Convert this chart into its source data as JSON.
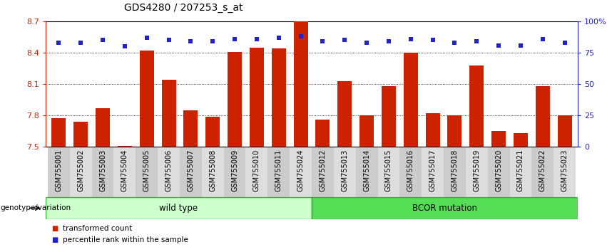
{
  "title": "GDS4280 / 207253_s_at",
  "categories": [
    "GSM755001",
    "GSM755002",
    "GSM755003",
    "GSM755004",
    "GSM755005",
    "GSM755006",
    "GSM755007",
    "GSM755008",
    "GSM755009",
    "GSM755010",
    "GSM755011",
    "GSM755024",
    "GSM755012",
    "GSM755013",
    "GSM755014",
    "GSM755015",
    "GSM755016",
    "GSM755017",
    "GSM755018",
    "GSM755019",
    "GSM755020",
    "GSM755021",
    "GSM755022",
    "GSM755023"
  ],
  "bar_values": [
    7.77,
    7.74,
    7.87,
    7.51,
    8.42,
    8.14,
    7.85,
    7.79,
    8.41,
    8.45,
    8.44,
    8.7,
    7.76,
    8.13,
    7.8,
    8.08,
    8.4,
    7.82,
    7.8,
    8.28,
    7.65,
    7.63,
    8.08,
    7.8
  ],
  "percentile_values": [
    83,
    83,
    85,
    80,
    87,
    85,
    84,
    84,
    86,
    86,
    87,
    88,
    84,
    85,
    83,
    84,
    86,
    85,
    83,
    84,
    81,
    81,
    86,
    83
  ],
  "bar_color": "#cc2200",
  "percentile_color": "#2222cc",
  "ylim_left": [
    7.5,
    8.7
  ],
  "ylim_right": [
    0,
    100
  ],
  "yticks_left": [
    7.5,
    7.8,
    8.1,
    8.4,
    8.7
  ],
  "yticks_right": [
    0,
    25,
    50,
    75,
    100
  ],
  "ytick_labels_right": [
    "0",
    "25",
    "50",
    "75",
    "100%"
  ],
  "group1_label": "wild type",
  "group2_label": "BCOR mutation",
  "group1_count": 12,
  "group2_count": 12,
  "group1_color": "#ccffcc",
  "group2_color": "#55dd55",
  "group_border_color": "#33aa33",
  "group_header": "genotype/variation",
  "legend1": "transformed count",
  "legend2": "percentile rank within the sample",
  "title_fontsize": 10,
  "tick_label_fontsize": 7,
  "bar_width": 0.65,
  "xlabel_band_colors": [
    "#cccccc",
    "#dddddd"
  ],
  "spine_color": "#000000"
}
